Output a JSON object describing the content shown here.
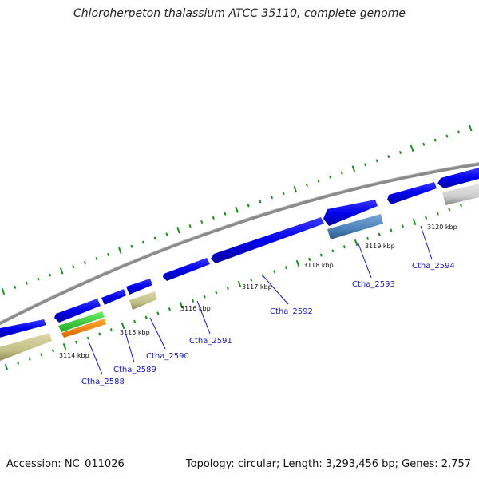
{
  "header": {
    "title": "Chloroherpeton thalassium ATCC 35110, complete genome"
  },
  "footer": {
    "accession": "Accession: NC_011026",
    "summary": "Topology: circular; Length: 3,293,456 bp; Genes: 2,757"
  },
  "colors": {
    "backbone": "#8a8a8a",
    "cds_forward": "#0000ee",
    "cds_khaki": "#c4c088",
    "cds_steelblue": "#4a80b8",
    "cds_grey": "#cccccc",
    "rRNA_green": "#33cc33",
    "tRNA_orange": "#ff8800",
    "tick": "#1f8a1f",
    "label": "#1a1aa8"
  },
  "scale_ticks": [
    "3114 kbp",
    "3115 kbp",
    "3116 kbp",
    "3117 kbp",
    "3118 kbp",
    "3119 kbp",
    "3120 kbp"
  ],
  "genes": [
    {
      "name": "Ctha_2588"
    },
    {
      "name": "Ctha_2589"
    },
    {
      "name": "Ctha_2590"
    },
    {
      "name": "Ctha_2591"
    },
    {
      "name": "Ctha_2592"
    },
    {
      "name": "Ctha_2593"
    },
    {
      "name": "Ctha_2594"
    }
  ]
}
